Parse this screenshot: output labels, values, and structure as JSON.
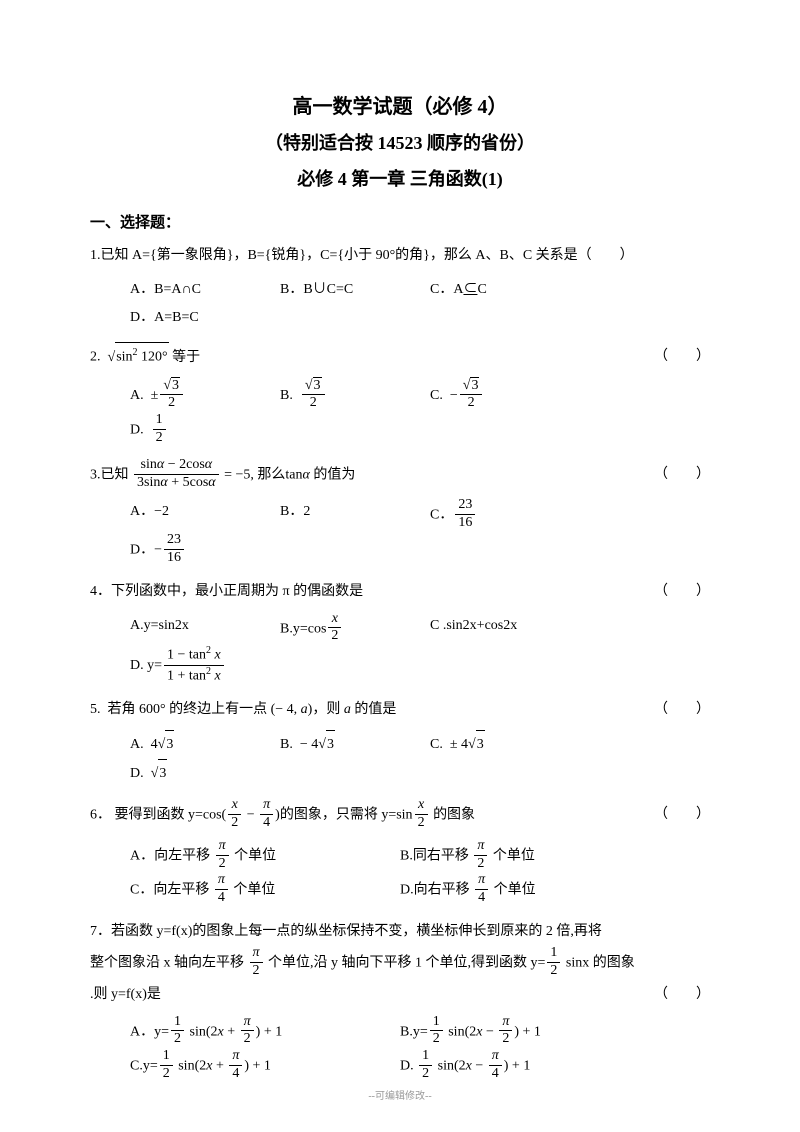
{
  "background_color": "#ffffff",
  "text_color": "#000000",
  "font_family": "SimSun",
  "base_font_size": 14,
  "titles": {
    "line1": "高一数学试题（必修 4）",
    "line2": "（特别适合按 14523 顺序的省份）",
    "line3": "必修 4  第一章  三角函数(1)",
    "font_sizes": [
      20,
      18,
      18
    ],
    "font_weight": "bold"
  },
  "section": {
    "heading": "一、选择题：",
    "font_size": 15,
    "font_weight": "bold"
  },
  "footer": "--可编辑修改--",
  "q1": {
    "stem": "1.已知 A={第一象限角}，B={锐角}，C={小于 90°的角}，那么 A、B、C 关系是（　　）",
    "A": "A．B=A∩C",
    "B": "B．B∪C=C",
    "C_html": "C．A<span style='text-decoration:underline;'>⊂</span>C",
    "D": "D．A=B=C"
  },
  "q2": {
    "num_html": "2<span class='dpunct'>.</span>",
    "stem_html": "<span class='sqrt'><span class='radicand'>sin<sup>2</sup> 120°</span></span> 等于",
    "paren": "（　　）",
    "A_html": "A<span class='dpunct'>.</span> &nbsp;±<span class='frac'><span class='num'><span class='sqrt'><span class='radicand'>3</span></span></span><span class='den'>2</span></span>",
    "B_html": "B<span class='dpunct'>.</span> &nbsp;<span class='frac'><span class='num'><span class='sqrt'><span class='radicand'>3</span></span></span><span class='den'>2</span></span>",
    "C_html": "C<span class='dpunct'>.</span> &nbsp;−<span class='frac'><span class='num'><span class='sqrt'><span class='radicand'>3</span></span></span><span class='den'>2</span></span>",
    "D_html": "D<span class='dpunct'>.</span> &nbsp;<span class='frac'><span class='num'>1</span><span class='den'>2</span></span>"
  },
  "q3": {
    "stem_html": "3.已知 <span class='frac'><span class='num'>sin<i>α</i> − 2cos<i>α</i></span><span class='den'>3sin<i>α</i> + 5cos<i>α</i></span></span> = −5, 那么tan<i>α</i> 的值为",
    "paren": "（　　）",
    "A": "A．−2",
    "B": "B．2",
    "C_html": "C．<span class='frac'><span class='num'>23</span><span class='den'>16</span></span>",
    "D_html": "D．−<span class='frac'><span class='num'>23</span><span class='den'>16</span></span>"
  },
  "q4": {
    "stem": "4．下列函数中，最小正周期为 π 的偶函数是",
    "paren": "（　　）",
    "A": "A.y=sin2x",
    "B_html": "B.y=cos<span class='frac'><span class='num'><i>x</i></span><span class='den'>2</span></span>",
    "C": "C .sin2x+cos2x",
    "D_html": "D. y=<span class='frac'><span class='num'>1 − tan<sup>2</sup> <i>x</i></span><span class='den'>1 + tan<sup>2</sup> <i>x</i></span></span>"
  },
  "q5": {
    "stem_html": "5<span class='dpunct'>.</span>&nbsp;&nbsp;若角 600° 的终边上有一点 (− 4, <i>a</i>)，则 <i>a</i> 的值是",
    "paren": "（　　）",
    "A_html": "A<span class='dpunct'>.</span> &nbsp;4<span class='sqrt'><span class='radicand'>3</span></span>",
    "B_html": "B<span class='dpunct'>.</span> &nbsp;− 4<span class='sqrt'><span class='radicand'>3</span></span>",
    "C_html": "C<span class='dpunct'>.</span> &nbsp;± 4<span class='sqrt'><span class='radicand'>3</span></span>",
    "D_html": "D<span class='dpunct'>.</span> &nbsp;<span class='sqrt'><span class='radicand'>3</span></span>"
  },
  "q6": {
    "stem_html": "6．&nbsp;要得到函数 y=cos(<span class='frac'><span class='num'><i>x</i></span><span class='den'>2</span></span> − <span class='frac'><span class='num'><i>π</i></span><span class='den'>4</span></span>)的图象，只需将 y=sin<span class='frac'><span class='num'><i>x</i></span><span class='den'>2</span></span> 的图象",
    "paren": "（　　）",
    "A_html": "A．向左平移 <span class='frac'><span class='num'><i>π</i></span><span class='den'>2</span></span> 个单位",
    "B_html": "B.同右平移 <span class='frac'><span class='num'><i>π</i></span><span class='den'>2</span></span> 个单位",
    "C_html": "C．向左平移 <span class='frac'><span class='num'><i>π</i></span><span class='den'>4</span></span> 个单位",
    "D_html": "D.向右平移 <span class='frac'><span class='num'><i>π</i></span><span class='den'>4</span></span> 个单位"
  },
  "q7": {
    "stem_html": "7．若函数 y=f(x)的图象上每一点的纵坐标保持不变，横坐标伸长到原来的 2 倍,再将<br>整个图象沿 x 轴向左平移 <span class='frac'><span class='num'><i>π</i></span><span class='den'>2</span></span> 个单位,沿 y 轴向下平移 1 个单位,得到函数 y=<span class='frac'><span class='num'>1</span><span class='den'>2</span></span> sinx 的图象<br><span class='dpunct'>.</span>则 y=f(x)是",
    "paren": "（　　）",
    "A_html": "A．y=<span class='frac'><span class='num'>1</span><span class='den'>2</span></span> sin(2<i>x</i> + <span class='frac'><span class='num'><i>π</i></span><span class='den'>2</span></span>) + 1",
    "B_html": "B.y=<span class='frac'><span class='num'>1</span><span class='den'>2</span></span> sin(2<i>x</i> − <span class='frac'><span class='num'><i>π</i></span><span class='den'>2</span></span>) + 1",
    "C_html": "C.y=<span class='frac'><span class='num'>1</span><span class='den'>2</span></span> sin(2<i>x</i> + <span class='frac'><span class='num'><i>π</i></span><span class='den'>4</span></span>) + 1",
    "D_html": "D. <span class='frac'><span class='num'>1</span><span class='den'>2</span></span> sin(2<i>x</i> − <span class='frac'><span class='num'><i>π</i></span><span class='den'>4</span></span>) + 1"
  }
}
